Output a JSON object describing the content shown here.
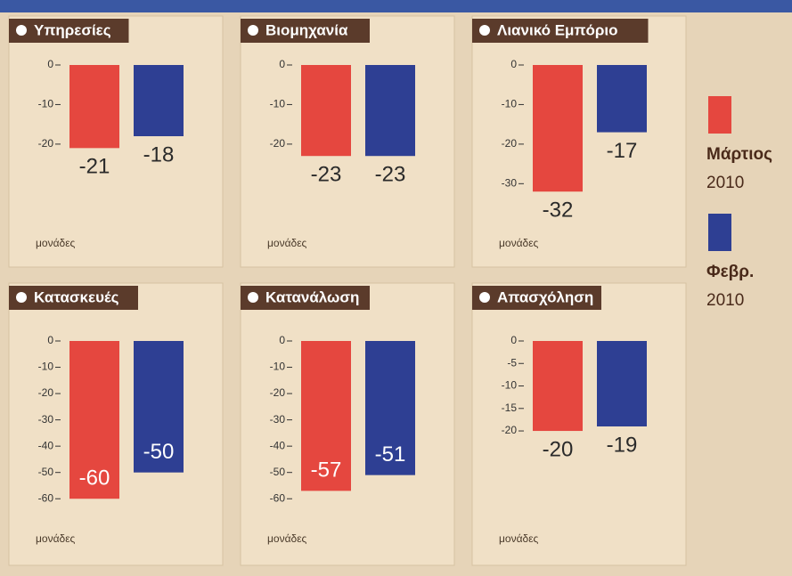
{
  "legend": [
    {
      "name": "Μάρτιος",
      "year": "2010",
      "color": "#e5473f"
    },
    {
      "name": "Φεβρ.",
      "year": "2010",
      "color": "#2e3f93"
    }
  ],
  "chart_data": [
    {
      "type": "bar",
      "title": "Υπηρεσίες",
      "values": [
        -21,
        -18
      ],
      "ylim": [
        -45,
        0
      ],
      "yticks": [
        0,
        -10,
        -20
      ],
      "unit_label": "μονάδες"
    },
    {
      "type": "bar",
      "title": "Βιομηχανία",
      "values": [
        -23,
        -23
      ],
      "ylim": [
        -45,
        0
      ],
      "yticks": [
        0,
        -10,
        -20
      ],
      "unit_label": "μονάδες"
    },
    {
      "type": "bar",
      "title": "Λιανικό Εμπόριο",
      "values": [
        -32,
        -17
      ],
      "ylim": [
        -45,
        0
      ],
      "yticks": [
        0,
        -10,
        -20,
        -30
      ],
      "unit_label": "μονάδες"
    },
    {
      "type": "bar",
      "title": "Κατασκευές",
      "values": [
        -60,
        -50
      ],
      "ylim": [
        -65,
        0
      ],
      "yticks": [
        0,
        -10,
        -20,
        -30,
        -40,
        -50,
        -60
      ],
      "unit_label": "μονάδες"
    },
    {
      "type": "bar",
      "title": "Κατανάλωση",
      "values": [
        -57,
        -51
      ],
      "ylim": [
        -65,
        0
      ],
      "yticks": [
        0,
        -10,
        -20,
        -30,
        -40,
        -50,
        -60
      ],
      "unit_label": "μονάδες"
    },
    {
      "type": "bar",
      "title": "Απασχόληση",
      "values": [
        -20,
        -19
      ],
      "ylim": [
        -38,
        0
      ],
      "yticks": [
        0,
        -5,
        -10,
        -15,
        -20
      ],
      "unit_label": "μονάδες"
    }
  ]
}
